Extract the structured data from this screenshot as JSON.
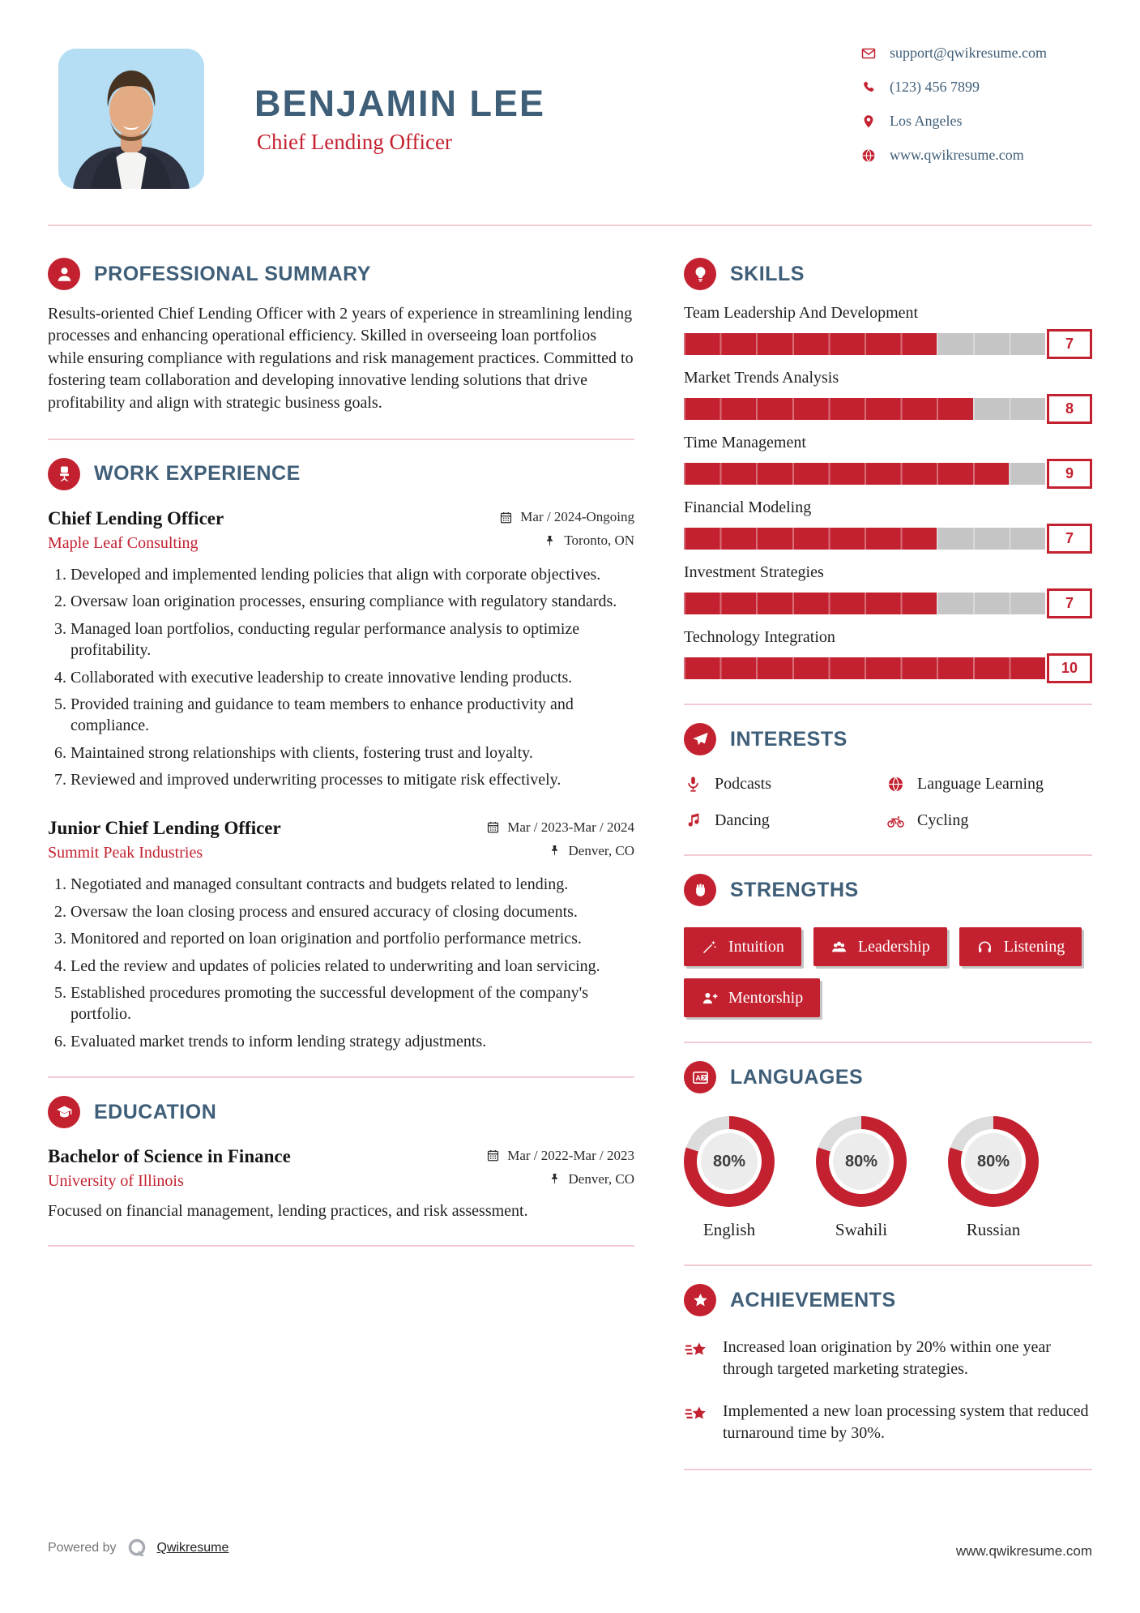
{
  "colors": {
    "accent": "#c32130",
    "heading": "#3f5e78",
    "text": "#1f1f1f",
    "divider": "#f2ccd2",
    "bar_track": "#c5c5c5",
    "donut_rest": "#dcdcdc",
    "donut_inner": "#ececec",
    "photo_bg": "#b5ddf4"
  },
  "icons": {
    "date": "calendar-icon",
    "location": "pin-icon"
  },
  "header": {
    "name": "BENJAMIN LEE",
    "title": "Chief Lending Officer",
    "contact": [
      {
        "icon": "email-icon",
        "text": "support@qwikresume.com"
      },
      {
        "icon": "phone-icon",
        "text": "(123) 456 7899"
      },
      {
        "icon": "location-icon",
        "text": "Los Angeles"
      },
      {
        "icon": "globe-icon",
        "text": "www.qwikresume.com"
      }
    ]
  },
  "summary": {
    "icon": "user-icon",
    "heading": "PROFESSIONAL SUMMARY",
    "text": "Results-oriented Chief Lending Officer with 2 years of experience in streamlining lending processes and enhancing operational efficiency. Skilled in overseeing loan portfolios while ensuring compliance with regulations and risk management practices. Committed to fostering team collaboration and developing innovative lending solutions that drive profitability and align with strategic business goals."
  },
  "work": {
    "icon": "chair-icon",
    "heading": "WORK EXPERIENCE",
    "jobs": [
      {
        "title": "Chief Lending Officer",
        "company": "Maple Leaf Consulting",
        "date": "Mar / 2024-Ongoing",
        "location": "Toronto, ON",
        "items": [
          "Developed and implemented lending policies that align with corporate objectives.",
          "Oversaw loan origination processes, ensuring compliance with regulatory standards.",
          "Managed loan portfolios, conducting regular performance analysis to optimize profitability.",
          "Collaborated with executive leadership to create innovative lending products.",
          "Provided training and guidance to team members to enhance productivity and compliance.",
          "Maintained strong relationships with clients, fostering trust and loyalty.",
          "Reviewed and improved underwriting processes to mitigate risk effectively."
        ]
      },
      {
        "title": "Junior Chief Lending Officer",
        "company": "Summit Peak Industries",
        "date": "Mar / 2023-Mar / 2024",
        "location": "Denver, CO",
        "items": [
          "Negotiated and managed consultant contracts and budgets related to lending.",
          "Oversaw the loan closing process and ensured accuracy of closing documents.",
          "Monitored and reported on loan origination and portfolio performance metrics.",
          "Led the review and updates of policies related to underwriting and loan servicing.",
          "Established procedures promoting the successful development of the company's portfolio.",
          "Evaluated market trends to inform lending strategy adjustments."
        ]
      }
    ]
  },
  "education": {
    "icon": "graduation-icon",
    "heading": "EDUCATION",
    "degree": "Bachelor of Science in Finance",
    "school": "University of Illinois",
    "date": "Mar / 2022-Mar / 2023",
    "location": "Denver, CO",
    "note": "Focused on financial management, lending practices, and risk assessment."
  },
  "skills": {
    "icon": "lightbulb-icon",
    "heading": "SKILLS",
    "max": 10,
    "items": [
      {
        "name": "Team Leadership And Development",
        "score": 7
      },
      {
        "name": "Market Trends Analysis",
        "score": 8
      },
      {
        "name": "Time Management",
        "score": 9
      },
      {
        "name": "Financial Modeling",
        "score": 7
      },
      {
        "name": "Investment Strategies",
        "score": 7
      },
      {
        "name": "Technology Integration",
        "score": 10
      }
    ]
  },
  "interests": {
    "icon": "paper-plane-icon",
    "heading": "INTERESTS",
    "items": [
      {
        "icon": "microphone-icon",
        "label": "Podcasts"
      },
      {
        "icon": "globe-icon",
        "label": "Language Learning"
      },
      {
        "icon": "music-note-icon",
        "label": "Dancing"
      },
      {
        "icon": "bicycle-icon",
        "label": "Cycling"
      }
    ]
  },
  "strengths": {
    "icon": "fist-icon",
    "heading": "STRENGTHS",
    "items": [
      {
        "icon": "wand-icon",
        "label": "Intuition"
      },
      {
        "icon": "team-icon",
        "label": "Leadership"
      },
      {
        "icon": "headphones-icon",
        "label": "Listening"
      },
      {
        "icon": "person-plus-icon",
        "label": "Mentorship"
      }
    ]
  },
  "languages": {
    "icon": "translate-icon",
    "heading": "LANGUAGES",
    "items": [
      {
        "name": "English",
        "percent": 80,
        "percent_label": "80%"
      },
      {
        "name": "Swahili",
        "percent": 80,
        "percent_label": "80%"
      },
      {
        "name": "Russian",
        "percent": 80,
        "percent_label": "80%"
      }
    ]
  },
  "achievements": {
    "icon": "star-icon",
    "heading": "ACHIEVEMENTS",
    "item_icon": "shooting-star-icon",
    "items": [
      "Increased loan origination by 20% within one year through targeted marketing strategies.",
      "Implemented a new loan processing system that reduced turnaround time by 30%."
    ]
  },
  "footer": {
    "powered_by": "Powered by",
    "brand_logo": "qwikresume-logo",
    "brand": "Qwikresume",
    "site": "www.qwikresume.com"
  }
}
